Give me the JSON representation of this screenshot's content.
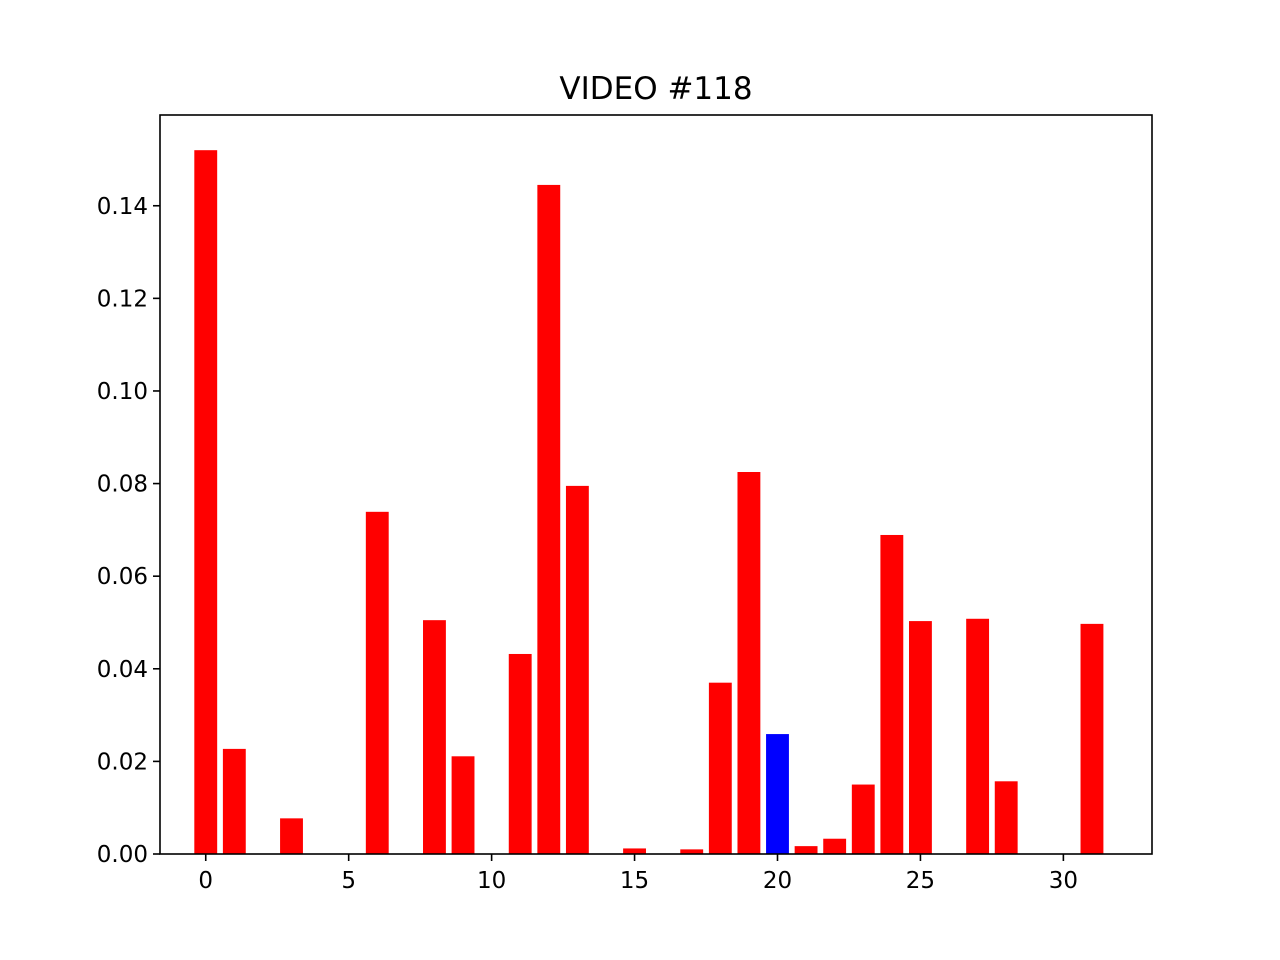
{
  "chart_data": {
    "type": "bar",
    "title": "VIDEO #118",
    "xlabel": "",
    "ylabel": "",
    "x": [
      0,
      1,
      2,
      3,
      4,
      5,
      6,
      7,
      8,
      9,
      10,
      11,
      12,
      13,
      14,
      15,
      16,
      17,
      18,
      19,
      20,
      21,
      22,
      23,
      24,
      25,
      26,
      27,
      28,
      29,
      30,
      31
    ],
    "values": [
      0.152,
      0.0227,
      0,
      0.0077,
      0,
      0,
      0.0739,
      0,
      0.0505,
      0.0211,
      0,
      0.0432,
      0.1445,
      0.0795,
      0,
      0.0012,
      0,
      0.001,
      0.037,
      0.0825,
      0.0259,
      0.0017,
      0.0033,
      0.015,
      0.0689,
      0.0503,
      0,
      0.0508,
      0.0157,
      0,
      0,
      0.0497
    ],
    "highlight_index": 20,
    "colors": {
      "default": "#ff0000",
      "highlight": "#0000ff"
    },
    "xlim": [
      -1.6,
      33.1
    ],
    "ylim": [
      0,
      0.1596
    ],
    "xticks": [
      0,
      5,
      10,
      15,
      20,
      25,
      30
    ],
    "xtick_labels": [
      "0",
      "5",
      "10",
      "15",
      "20",
      "25",
      "30"
    ],
    "yticks": [
      0,
      0.02,
      0.04,
      0.06,
      0.08,
      0.1,
      0.12,
      0.14
    ],
    "ytick_labels": [
      "0.00",
      "0.02",
      "0.04",
      "0.06",
      "0.08",
      "0.10",
      "0.12",
      "0.14"
    ],
    "grid": false,
    "legend": "none"
  }
}
